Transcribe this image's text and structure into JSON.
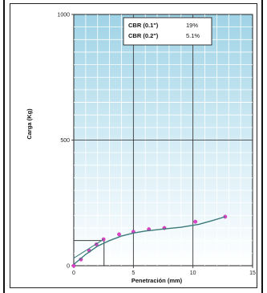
{
  "chart_data": {
    "type": "scatter",
    "xlabel": "Penetración (mm)",
    "ylabel": "Carga (Kg)",
    "xlim": [
      0,
      15
    ],
    "ylim": [
      0,
      1000
    ],
    "x_ticks": [
      "0",
      "5",
      "10",
      "15"
    ],
    "y_ticks": [
      "0",
      "500",
      "1000"
    ],
    "grid": true,
    "legend_position": "top-right",
    "cbr": [
      {
        "label": "CBR (0.1\")",
        "value": "19%"
      },
      {
        "label": "CBR (0.2\")",
        "value": "5.1%"
      }
    ],
    "series": [
      {
        "name": "",
        "style": "points",
        "color": "#e040c8",
        "x": [
          0.0,
          0.6,
          1.3,
          1.9,
          2.5,
          3.8,
          5.0,
          6.3,
          7.6,
          10.2,
          12.7
        ],
        "y": [
          0,
          25,
          60,
          85,
          105,
          125,
          135,
          145,
          150,
          175,
          195
        ]
      },
      {
        "name": "",
        "style": "curve",
        "color": "#3a7a7a",
        "x": [
          0.0,
          1.0,
          2.0,
          3.0,
          4.0,
          5.0,
          6.0,
          7.5,
          9.0,
          10.5,
          11.5,
          12.7
        ],
        "y": [
          5,
          45,
          78,
          100,
          118,
          130,
          138,
          146,
          153,
          165,
          178,
          195
        ]
      },
      {
        "name": "",
        "style": "line",
        "color": "#3a7a7a",
        "x": [
          0.0,
          2.5
        ],
        "y": [
          30,
          105
        ]
      }
    ]
  }
}
